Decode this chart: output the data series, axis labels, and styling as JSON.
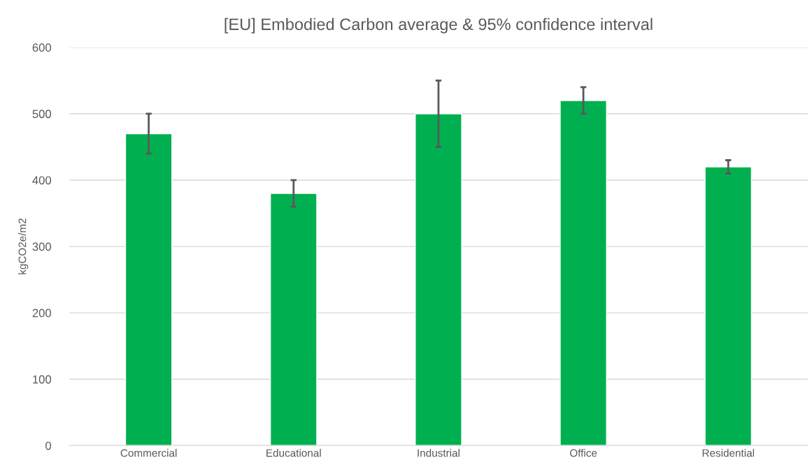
{
  "chart_data": {
    "type": "bar",
    "title": "[EU] Embodied Carbon average & 95% confidence interval",
    "ylabel": "kgCO2e/m2",
    "categories": [
      "Commercial",
      "Educational",
      "Industrial",
      "Office",
      "Residential"
    ],
    "values": [
      470,
      380,
      500,
      520,
      420
    ],
    "errors": [
      30,
      20,
      50,
      20,
      10
    ],
    "color": "#00b050",
    "ylim": [
      0,
      600
    ],
    "yticks": [
      0,
      100,
      200,
      300,
      400,
      500,
      600
    ],
    "grid": "y",
    "legend": false
  }
}
